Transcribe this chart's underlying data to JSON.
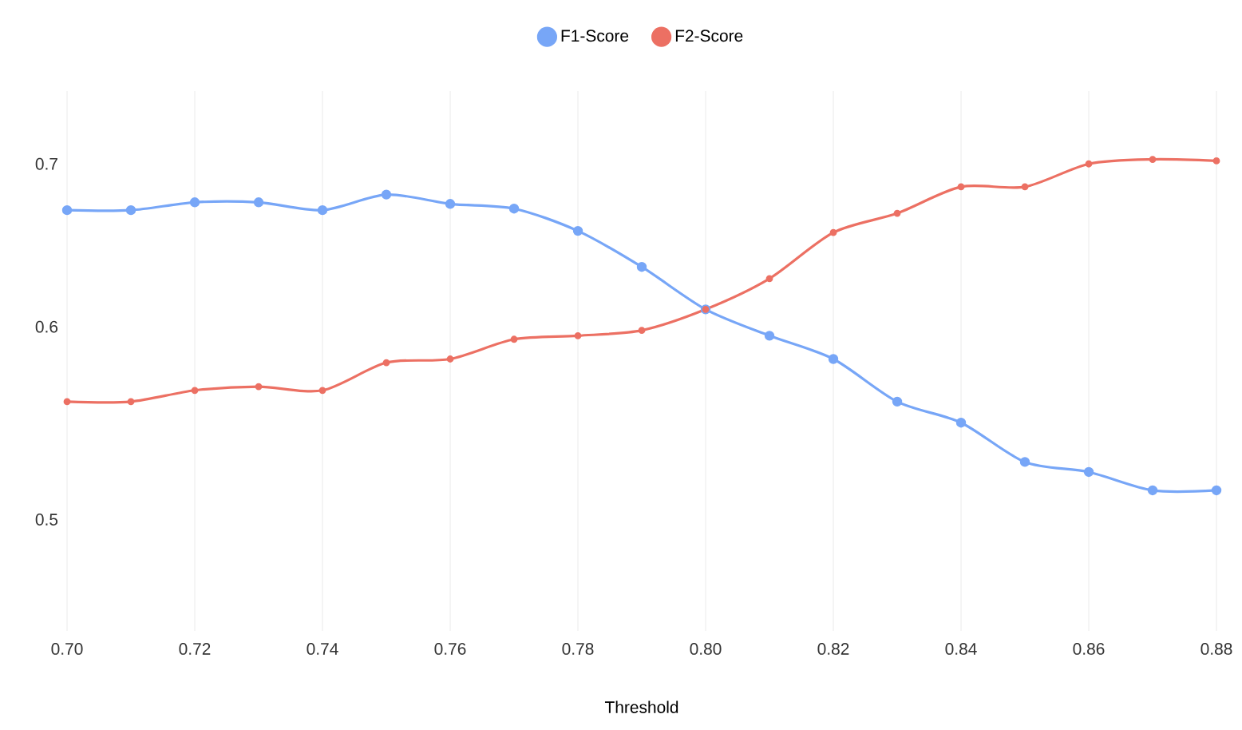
{
  "chart_data": {
    "type": "line",
    "xlabel": "Threshold",
    "x": [
      0.7,
      0.71,
      0.72,
      0.73,
      0.74,
      0.75,
      0.76,
      0.77,
      0.78,
      0.79,
      0.8,
      0.81,
      0.82,
      0.83,
      0.84,
      0.85,
      0.86,
      0.87,
      0.88
    ],
    "series": [
      {
        "name": "F1-Score",
        "color": "#77a6f7",
        "values": [
          0.67,
          0.67,
          0.675,
          0.675,
          0.67,
          0.68,
          0.674,
          0.671,
          0.657,
          0.635,
          0.61,
          0.595,
          0.582,
          0.559,
          0.548,
          0.528,
          0.523,
          0.514,
          0.514
        ]
      },
      {
        "name": "F2-Score",
        "color": "#ec7063",
        "values": [
          0.559,
          0.559,
          0.565,
          0.567,
          0.565,
          0.58,
          0.582,
          0.593,
          0.595,
          0.598,
          0.61,
          0.628,
          0.656,
          0.668,
          0.685,
          0.685,
          0.7,
          0.703,
          0.702
        ]
      }
    ],
    "xlim": [
      0.7,
      0.88
    ],
    "xticks": [
      {
        "value": 0.7,
        "label": "0.70"
      },
      {
        "value": 0.72,
        "label": "0.72"
      },
      {
        "value": 0.74,
        "label": "0.74"
      },
      {
        "value": 0.76,
        "label": "0.76"
      },
      {
        "value": 0.78,
        "label": "0.78"
      },
      {
        "value": 0.8,
        "label": "0.80"
      },
      {
        "value": 0.82,
        "label": "0.82"
      },
      {
        "value": 0.84,
        "label": "0.84"
      },
      {
        "value": 0.86,
        "label": "0.86"
      },
      {
        "value": 0.88,
        "label": "0.88"
      }
    ],
    "ylim": [
      0.45,
      0.75
    ],
    "yticks": [
      0.5,
      0.6,
      0.7
    ],
    "log": "y",
    "grid": "x",
    "legend": "top",
    "marker": "circle",
    "line_style": "solid"
  }
}
